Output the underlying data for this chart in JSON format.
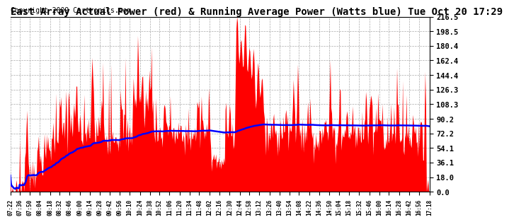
{
  "title": "East Array Actual Power (red) & Running Average Power (Watts blue) Tue Oct 20 17:29",
  "copyright": "Copyright 2009 Cartronics.com",
  "ylabel_right_ticks": [
    0.0,
    18.0,
    36.1,
    54.1,
    72.2,
    90.2,
    108.3,
    126.3,
    144.4,
    162.4,
    180.4,
    198.5,
    216.5
  ],
  "ymax": 216.5,
  "ymin": 0.0,
  "background_color": "#ffffff",
  "fill_color": "red",
  "avg_color": "blue",
  "grid_color": "#aaaaaa",
  "x_labels": [
    "07:22",
    "07:36",
    "07:50",
    "08:04",
    "08:18",
    "08:32",
    "08:46",
    "09:00",
    "09:14",
    "09:28",
    "09:42",
    "09:56",
    "10:10",
    "10:24",
    "10:38",
    "10:52",
    "11:06",
    "11:20",
    "11:34",
    "11:48",
    "12:02",
    "12:16",
    "12:30",
    "12:44",
    "12:58",
    "13:12",
    "13:26",
    "13:40",
    "13:54",
    "14:08",
    "14:22",
    "14:36",
    "14:50",
    "15:04",
    "15:18",
    "15:32",
    "15:46",
    "16:00",
    "16:14",
    "16:28",
    "16:42",
    "16:56",
    "17:18"
  ],
  "title_fontsize": 10,
  "copyright_fontsize": 7
}
